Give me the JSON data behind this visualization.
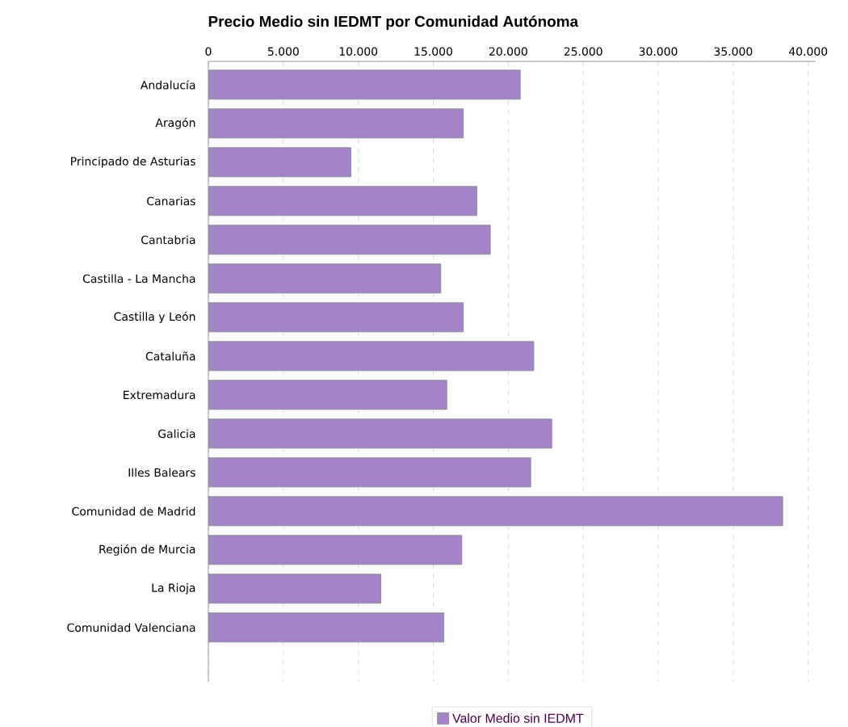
{
  "chart_data": {
    "type": "bar",
    "orientation": "horizontal",
    "title": "Precio Medio sin IEDMT por Comunidad Autónoma",
    "categories": [
      "Andalucía",
      "Aragón",
      "Principado de Asturias",
      "Canarias",
      "Cantabria",
      "Castilla - La Mancha",
      "Castilla y León",
      "Cataluña",
      "Extremadura",
      "Galicia",
      "Illes Balears",
      "Comunidad de Madrid",
      "Región de Murcia",
      "La Rioja",
      "Comunidad Valenciana"
    ],
    "series": [
      {
        "name": "Valor Medio sin IEDMT",
        "color": "#a585c9",
        "values": [
          20800,
          17000,
          9500,
          17900,
          18800,
          15500,
          17000,
          21700,
          15900,
          22900,
          21500,
          38300,
          16900,
          11500,
          15700
        ]
      }
    ],
    "xlim": [
      0,
      40500
    ],
    "xticks": [
      0,
      {
        "value": 5000,
        "label": "5.000"
      },
      {
        "value": 10000,
        "label": "10.000"
      },
      {
        "value": 15000,
        "label": "15.000"
      },
      {
        "value": 20000,
        "label": "20.000"
      },
      {
        "value": 25000,
        "label": "25.000"
      },
      {
        "value": 30000,
        "label": "30.000"
      },
      {
        "value": 35000,
        "label": "35.000"
      },
      {
        "value": 40000,
        "label": "40.000"
      }
    ],
    "grid": "x",
    "legend": "bottom"
  }
}
